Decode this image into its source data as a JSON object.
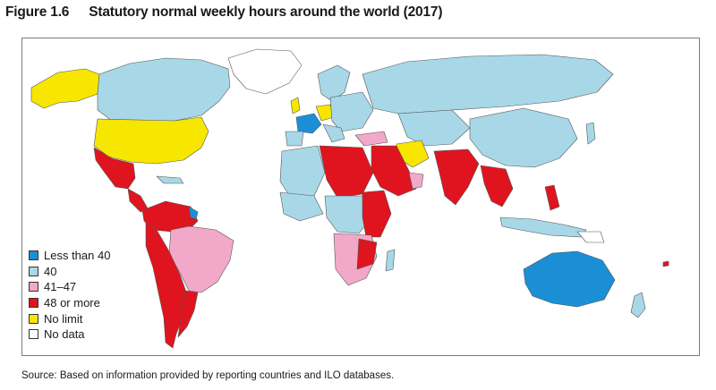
{
  "figure": {
    "number": "Figure 1.6",
    "title": "Statutory normal weekly hours around the world (2017)"
  },
  "legend": [
    {
      "label": "Less than 40",
      "color": "#1b8fd6"
    },
    {
      "label": "40",
      "color": "#a8d8e8"
    },
    {
      "label": "41–47",
      "color": "#f2a8c8"
    },
    {
      "label": "48 or more",
      "color": "#e0141e"
    },
    {
      "label": "No limit",
      "color": "#f7e600"
    },
    {
      "label": "No data",
      "color": "#ffffff"
    }
  ],
  "source": "Source: Based on information provided by reporting countries and ILO databases."
}
